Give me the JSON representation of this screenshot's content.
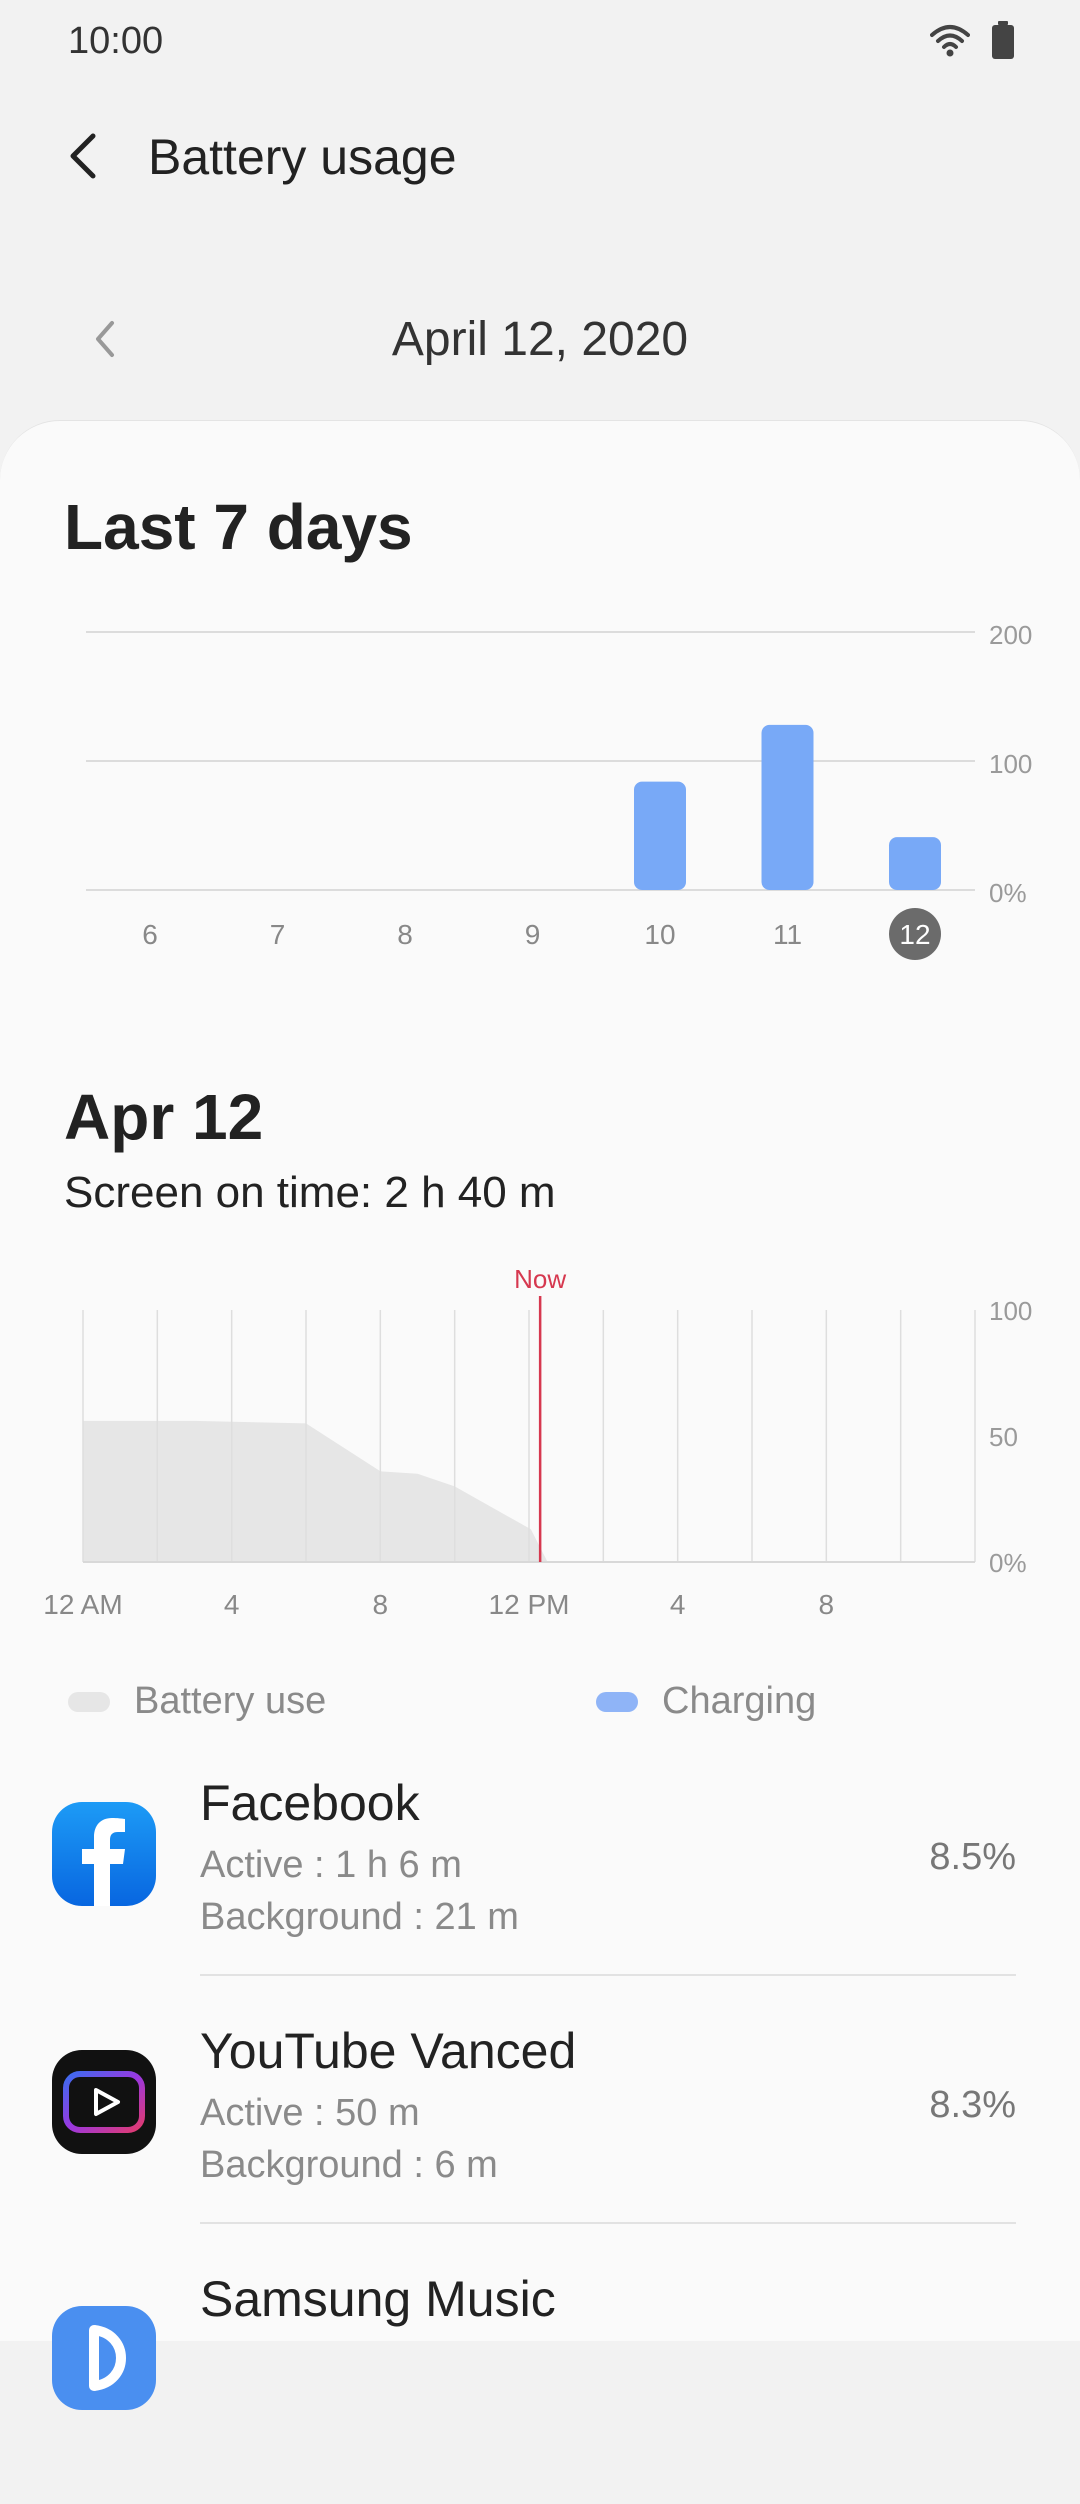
{
  "status_bar": {
    "time": "10:00",
    "icons": [
      "wifi-icon",
      "battery-icon"
    ]
  },
  "header": {
    "title": "Battery usage",
    "back_icon": "back-arrow-icon"
  },
  "date_nav": {
    "date": "April 12, 2020",
    "prev_icon": "chevron-left-icon"
  },
  "weekly": {
    "title": "Last 7 days"
  },
  "day": {
    "title": "Apr 12",
    "screen_on_time": "Screen on time: 2 h 40 m"
  },
  "legend": [
    {
      "label": "Battery use",
      "color": "#e6e6e6"
    },
    {
      "label": "Charging",
      "color": "#8fb4f7"
    }
  ],
  "apps": [
    {
      "name": "Facebook",
      "active": "Active : 1 h 6 m",
      "background": "Background : 21 m",
      "percent": "8.5%",
      "icon": "facebook-icon"
    },
    {
      "name": "YouTube Vanced",
      "active": "Active : 50 m",
      "background": "Background : 6 m",
      "percent": "8.3%",
      "icon": "youtube-vanced-icon"
    },
    {
      "name": "Samsung Music",
      "active": "",
      "background": "",
      "percent": "",
      "icon": "samsung-music-icon"
    }
  ],
  "colors": {
    "bar": "#78a9f7",
    "now_line": "#d6384f",
    "area": "#e6e6e6",
    "selected_day": "#6b6b6b"
  },
  "chart_data": [
    {
      "type": "bar",
      "categories": [
        "6",
        "7",
        "8",
        "9",
        "10",
        "11",
        "12"
      ],
      "values": [
        0,
        0,
        0,
        0,
        84,
        128,
        41
      ],
      "selected": "12",
      "yticks": [
        "200",
        "100",
        "0%"
      ],
      "ylim": [
        0,
        200
      ],
      "grid": true
    },
    {
      "type": "area",
      "xticks": [
        "12 AM",
        "4",
        "8",
        "12 PM",
        "4",
        "8"
      ],
      "yticks": [
        "100",
        "50",
        "0%"
      ],
      "xlim": [
        0,
        24
      ],
      "ylim": [
        0,
        100
      ],
      "x": [
        0,
        3,
        6,
        8,
        9,
        10,
        12.05,
        12.5
      ],
      "y": [
        56,
        56,
        55,
        36,
        35,
        30,
        13,
        0
      ],
      "now_label": "Now",
      "now_x": 12.3,
      "grid": true
    }
  ]
}
